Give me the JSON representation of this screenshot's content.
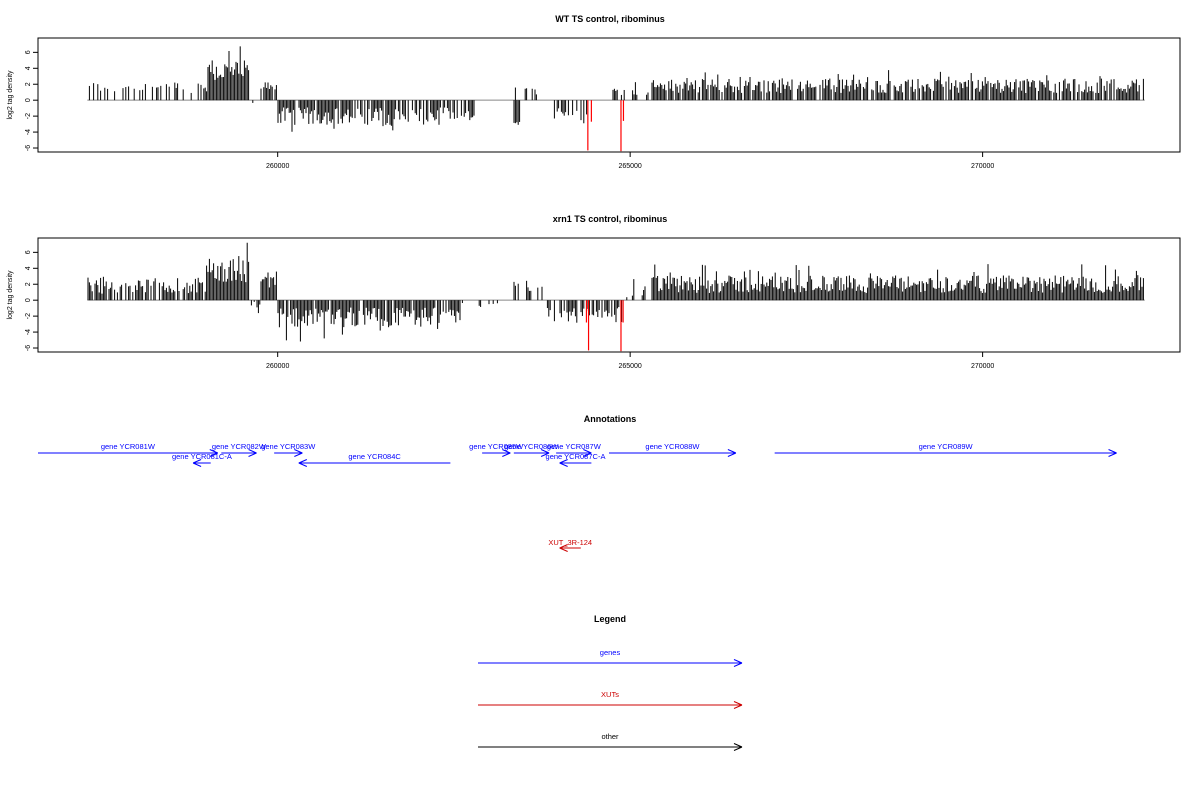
{
  "chart_data": [
    {
      "type": "bar",
      "title": "WT TS control, ribominus",
      "ylabel": "log2 tag density",
      "xlim": [
        256600,
        272800
      ],
      "ylim": [
        -6.5,
        7.8
      ],
      "x_ticks": [
        260000,
        265000,
        270000
      ],
      "y_ticks": [
        -6,
        -4,
        -2,
        0,
        2,
        4,
        6
      ],
      "baseline_range": [
        257300,
        272300
      ],
      "highlight_color": "#ff0000",
      "segments": [
        {
          "range": [
            257300,
            258700
          ],
          "mean": 1.6,
          "amp": 0.7,
          "density": 0.35
        },
        {
          "range": [
            258700,
            259000
          ],
          "mean": 1.8,
          "amp": 0.9,
          "density": 0.5
        },
        {
          "range": [
            259000,
            259600
          ],
          "mean": 3.6,
          "amp": 1.4,
          "density": 1.0
        },
        {
          "range": [
            259600,
            259750
          ],
          "mean": -0.5,
          "amp": 0.5,
          "density": 0.5
        },
        {
          "range": [
            259750,
            260000
          ],
          "mean": 1.9,
          "amp": 0.6,
          "density": 0.9
        },
        {
          "range": [
            260000,
            262800
          ],
          "mean": -2.0,
          "amp": 1.1,
          "density": 0.8
        },
        {
          "range": [
            263350,
            263450
          ],
          "mean": -3.0,
          "amp": 0.4,
          "density": 1.0
        },
        {
          "range": [
            263350,
            263700
          ],
          "mean": 1.2,
          "amp": 0.5,
          "density": 0.3
        },
        {
          "range": [
            263700,
            264400
          ],
          "mean": -1.5,
          "amp": 0.8,
          "density": 0.4
        },
        {
          "range": [
            264750,
            265300
          ],
          "mean": 1.2,
          "amp": 0.6,
          "density": 0.3
        },
        {
          "range": [
            265300,
            272300
          ],
          "mean": 1.8,
          "amp": 0.9,
          "density": 0.85
        }
      ],
      "red_bars": [
        {
          "x": 264400,
          "y": -6.3
        },
        {
          "x": 264450,
          "y": -2.7
        },
        {
          "x": 264870,
          "y": -6.4
        },
        {
          "x": 264905,
          "y": -2.6
        }
      ]
    },
    {
      "type": "bar",
      "title": "xrn1 TS control, ribominus",
      "ylabel": "log2 tag density",
      "xlim": [
        256600,
        272800
      ],
      "ylim": [
        -6.5,
        7.8
      ],
      "x_ticks": [
        260000,
        265000,
        270000
      ],
      "y_ticks": [
        -6,
        -4,
        -2,
        0,
        2,
        4,
        6
      ],
      "baseline_range": [
        257300,
        272300
      ],
      "highlight_color": "#ff0000",
      "segments": [
        {
          "range": [
            257300,
            258700
          ],
          "mean": 1.8,
          "amp": 1.0,
          "density": 0.75
        },
        {
          "range": [
            258700,
            259000
          ],
          "mean": 1.9,
          "amp": 1.1,
          "density": 0.85
        },
        {
          "range": [
            259000,
            259600
          ],
          "mean": 3.8,
          "amp": 1.8,
          "density": 1.0
        },
        {
          "range": [
            259600,
            259750
          ],
          "mean": -1.0,
          "amp": 0.8,
          "density": 0.6
        },
        {
          "range": [
            259750,
            260000
          ],
          "mean": 2.6,
          "amp": 1.0,
          "density": 1.0
        },
        {
          "range": [
            260000,
            262600
          ],
          "mean": -2.2,
          "amp": 1.3,
          "density": 0.95
        },
        {
          "range": [
            262600,
            263300
          ],
          "mean": -0.6,
          "amp": 0.3,
          "density": 0.15
        },
        {
          "range": [
            263350,
            263800
          ],
          "mean": 1.8,
          "amp": 0.8,
          "density": 0.45
        },
        {
          "range": [
            263800,
            264900
          ],
          "mean": -1.8,
          "amp": 1.0,
          "density": 0.7
        },
        {
          "range": [
            264900,
            265300
          ],
          "mean": 1.0,
          "amp": 0.8,
          "density": 0.6
        },
        {
          "range": [
            265300,
            272300
          ],
          "mean": 2.0,
          "amp": 1.1,
          "density": 1.0
        }
      ],
      "red_bars": [
        {
          "x": 264380,
          "y": -2.8
        },
        {
          "x": 264410,
          "y": -6.3
        },
        {
          "x": 264870,
          "y": -6.4
        },
        {
          "x": 264900,
          "y": -2.8
        }
      ]
    }
  ],
  "annotations": {
    "title": "Annotations",
    "genes": [
      {
        "label": "gene YCR081W",
        "start": 256600,
        "end": 259150,
        "dir": "+",
        "row": 0
      },
      {
        "label": "gene YCR081C-A",
        "start": 258800,
        "end": 259050,
        "dir": "-",
        "row": 1
      },
      {
        "label": "gene YCR082W",
        "start": 259200,
        "end": 259700,
        "dir": "+",
        "row": 0
      },
      {
        "label": "gene YCR083W",
        "start": 259950,
        "end": 260350,
        "dir": "+",
        "row": 0
      },
      {
        "label": "gene YCR084C",
        "start": 260300,
        "end": 262450,
        "dir": "-",
        "row": 1
      },
      {
        "label": "gene YCR085W",
        "start": 262900,
        "end": 263300,
        "dir": "+",
        "row": 0
      },
      {
        "label": "gene YCR086W",
        "start": 263350,
        "end": 263850,
        "dir": "+",
        "row": 0
      },
      {
        "label": "gene YCR087W",
        "start": 263950,
        "end": 264450,
        "dir": "+",
        "row": 0
      },
      {
        "label": "gene YCR087C-A",
        "start": 264000,
        "end": 264450,
        "dir": "-",
        "row": 1
      },
      {
        "label": "gene YCR088W",
        "start": 264700,
        "end": 266500,
        "dir": "+",
        "row": 0
      },
      {
        "label": "gene YCR089W",
        "start": 267050,
        "end": 271900,
        "dir": "+",
        "row": 0
      }
    ],
    "xuts": [
      {
        "label": "XUT_3R-124",
        "start": 264000,
        "end": 264300,
        "dir": "-"
      }
    ]
  },
  "legend": {
    "title": "Legend",
    "items": [
      {
        "label": "genes",
        "color": "#0000ff"
      },
      {
        "label": "XUTs",
        "color": "#cc0000"
      },
      {
        "label": "other",
        "color": "#000000"
      }
    ]
  },
  "colors": {
    "gene": "#0000ff",
    "xut": "#cc0000",
    "bars": "#000000",
    "baseline": "#888888"
  }
}
